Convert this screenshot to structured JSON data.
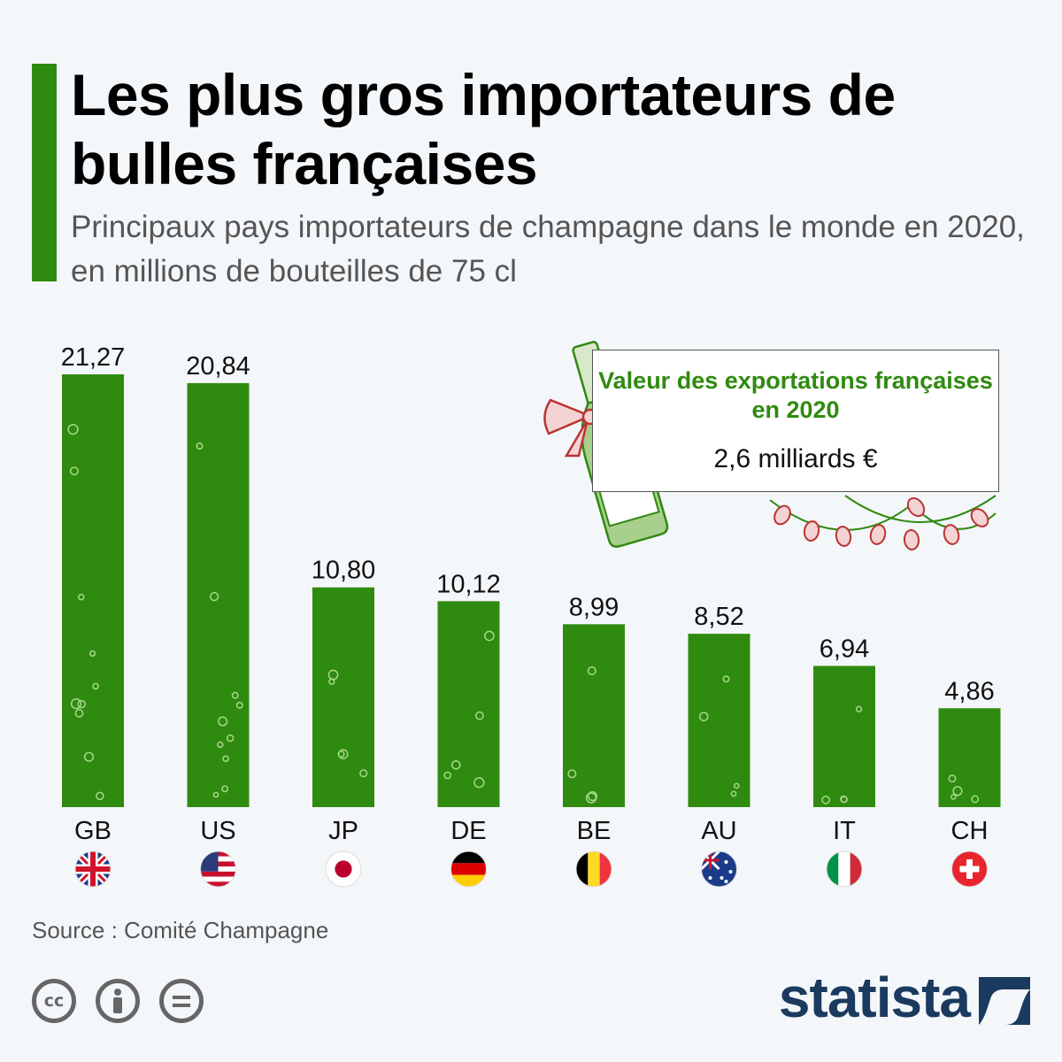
{
  "header": {
    "title": "Les plus gros importateurs de bulles françaises",
    "subtitle": "Principaux pays importateurs de champagne dans le monde en 2020, en millions de bouteilles de 75 cl"
  },
  "chart_data": {
    "type": "bar",
    "categories": [
      "GB",
      "US",
      "JP",
      "DE",
      "BE",
      "AU",
      "IT",
      "CH"
    ],
    "values": [
      21.27,
      20.84,
      10.8,
      10.12,
      8.99,
      8.52,
      6.94,
      4.86
    ],
    "data_labels": [
      "21,27",
      "20,84",
      "10,80",
      "10,12",
      "8,99",
      "8,52",
      "6,94",
      "4,86"
    ],
    "title": "Les plus gros importateurs de bulles françaises",
    "subtitle": "Principaux pays importateurs de champagne dans le monde en 2020, en millions de bouteilles de 75 cl",
    "xlabel": "",
    "ylabel": "",
    "ylim": [
      0,
      21.27
    ],
    "grid": false,
    "legend": "none",
    "bar_color": "#2f8a10"
  },
  "flags": [
    "uk-flag-icon",
    "us-flag-icon",
    "japan-flag-icon",
    "germany-flag-icon",
    "belgium-flag-icon",
    "australia-flag-icon",
    "italy-flag-icon",
    "switzerland-flag-icon"
  ],
  "info_box": {
    "label": "Valeur des exportations françaises en 2020",
    "value": "2,6 milliards €"
  },
  "footer": {
    "source": "Source : Comité Champagne",
    "brand": "statista",
    "license_icons": [
      "cc-icon",
      "attribution-icon",
      "noderivs-icon"
    ]
  },
  "colors": {
    "accent": "#2f8a10",
    "brand": "#1b3a5f",
    "text_muted": "#555555"
  }
}
